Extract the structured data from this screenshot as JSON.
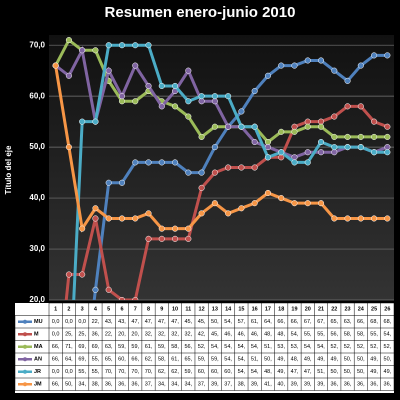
{
  "chart_data": {
    "type": "line",
    "title": "Resumen enero-junio 2010",
    "y_label": "Título del eje",
    "categories": [
      "1",
      "2",
      "3",
      "4",
      "5",
      "6",
      "7",
      "8",
      "9",
      "10",
      "11",
      "12",
      "13",
      "14",
      "15",
      "16",
      "17",
      "18",
      "19",
      "20",
      "21",
      "22",
      "23",
      "24",
      "25",
      "26"
    ],
    "ylim": [
      20,
      72
    ],
    "yticks": [
      {
        "value": 20,
        "label": "20,0"
      },
      {
        "value": 30,
        "label": "30,0"
      },
      {
        "value": 40,
        "label": "40,0"
      },
      {
        "value": 50,
        "label": "50,0"
      },
      {
        "value": 60,
        "label": "60,0"
      },
      {
        "value": 70,
        "label": "70,0"
      }
    ],
    "grid": true,
    "series": [
      {
        "name": "MU",
        "color": "#4f81bd",
        "values": [
          0,
          0,
          0,
          22,
          43,
          43,
          47,
          47,
          47,
          47,
          45,
          45,
          50,
          54,
          57,
          61,
          64,
          66,
          66,
          67,
          67,
          65,
          63,
          66,
          68,
          68
        ],
        "value_labels": [
          "0,0",
          "0,0",
          "0,0",
          "22,",
          "43,",
          "43,",
          "47,",
          "47,",
          "47,",
          "47,",
          "45,",
          "45,",
          "50,",
          "54,",
          "57,",
          "61,",
          "64,",
          "66,",
          "66,",
          "67,",
          "67,",
          "65,",
          "63,",
          "66,",
          "68,",
          "68,"
        ]
      },
      {
        "name": "M",
        "color": "#c0504d",
        "values": [
          0,
          25,
          25,
          36,
          22,
          20,
          20,
          32,
          32,
          32,
          32,
          42,
          45,
          46,
          46,
          46,
          48,
          48,
          54,
          55,
          55,
          56,
          58,
          58,
          55,
          54
        ],
        "value_labels": [
          "0,0",
          "25,",
          "25,",
          "36,",
          "22,",
          "20,",
          "20,",
          "32,",
          "32,",
          "32,",
          "32,",
          "42,",
          "45,",
          "46,",
          "46,",
          "46,",
          "48,",
          "48,",
          "54,",
          "55,",
          "55,",
          "56,",
          "58,",
          "58,",
          "55,",
          "54,"
        ]
      },
      {
        "name": "MA",
        "color": "#9bbb59",
        "values": [
          66,
          71,
          69,
          69,
          63,
          59,
          59,
          61,
          59,
          58,
          56,
          52,
          54,
          54,
          54,
          54,
          51,
          53,
          53,
          54,
          54,
          52,
          52,
          52,
          52,
          52
        ],
        "value_labels": [
          "66,",
          "71,",
          "69,",
          "69,",
          "63,",
          "59,",
          "59,",
          "61,",
          "59,",
          "58,",
          "56,",
          "52,",
          "54,",
          "54,",
          "54,",
          "54,",
          "51,",
          "53,",
          "53,",
          "54,",
          "54,",
          "52,",
          "52,",
          "52,",
          "52,",
          "52,"
        ]
      },
      {
        "name": "AN",
        "color": "#8064a2",
        "values": [
          66,
          64,
          69,
          55,
          65,
          60,
          66,
          62,
          58,
          61,
          65,
          59,
          59,
          54,
          54,
          51,
          50,
          49,
          48,
          49,
          49,
          49,
          50,
          50,
          49,
          50
        ],
        "value_labels": [
          "66,",
          "64,",
          "69,",
          "55,",
          "65,",
          "60,",
          "66,",
          "62,",
          "58,",
          "61,",
          "65,",
          "59,",
          "59,",
          "54,",
          "54,",
          "51,",
          "50,",
          "49,",
          "48,",
          "49,",
          "49,",
          "49,",
          "50,",
          "50,",
          "49,",
          "50,"
        ]
      },
      {
        "name": "JR",
        "color": "#4bacc6",
        "values": [
          0,
          0,
          55,
          55,
          70,
          70,
          70,
          70,
          62,
          62,
          59,
          60,
          60,
          60,
          54,
          54,
          48,
          49,
          47,
          47,
          51,
          50,
          50,
          50,
          49,
          49
        ],
        "value_labels": [
          "0,0",
          "0,0",
          "55,",
          "55,",
          "70,",
          "70,",
          "70,",
          "70,",
          "62,",
          "62,",
          "59,",
          "60,",
          "60,",
          "60,",
          "54,",
          "54,",
          "48,",
          "49,",
          "47,",
          "47,",
          "51,",
          "50,",
          "50,",
          "50,",
          "49,",
          "49,"
        ]
      },
      {
        "name": "JM",
        "color": "#f79646",
        "values": [
          66,
          50,
          34,
          38,
          36,
          36,
          36,
          37,
          34,
          34,
          34,
          37,
          39,
          37,
          38,
          39,
          41,
          40,
          39,
          39,
          39,
          36,
          36,
          36,
          36,
          36
        ],
        "value_labels": [
          "66,",
          "50,",
          "34,",
          "38,",
          "36,",
          "36,",
          "36,",
          "37,",
          "34,",
          "34,",
          "34,",
          "37,",
          "39,",
          "37,",
          "38,",
          "39,",
          "41,",
          "40,",
          "39,",
          "39,",
          "39,",
          "36,",
          "36,",
          "36,",
          "36,",
          "36,"
        ]
      }
    ]
  }
}
